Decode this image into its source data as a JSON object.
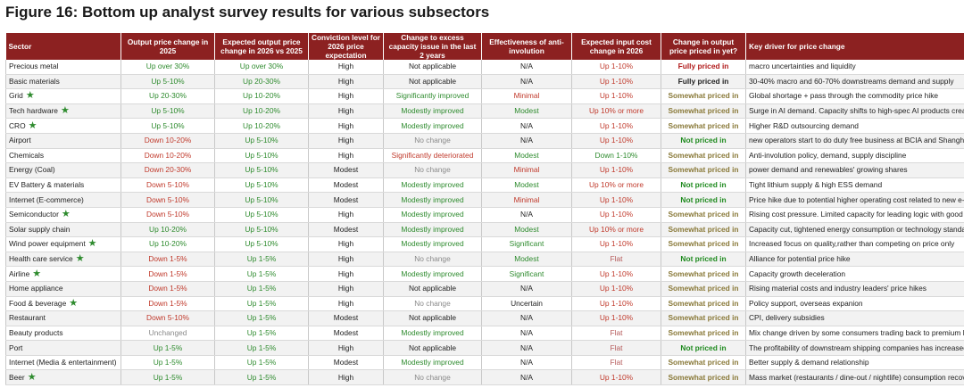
{
  "title": "Figure 16: Bottom up analyst survey results for various subsectors",
  "headers": [
    "Sector",
    "Output price change in 2025",
    "Expected output price change in 2026 vs 2025",
    "Conviction level for 2026 price expectation",
    "Change to excess capacity issue in the last 2 years",
    "Effectiveness of anti-involution",
    "Expected input cost change in 2026",
    "Change in output price priced in yet?",
    "Key driver for price change"
  ],
  "rows": [
    {
      "sector": "Precious metal",
      "star": false,
      "c1": [
        "Up over 30%",
        "green"
      ],
      "c2": [
        "Up over 30%",
        "green"
      ],
      "c3": [
        "High",
        "black"
      ],
      "c4": [
        "Not applicable",
        "black"
      ],
      "c5": [
        "N/A",
        "black"
      ],
      "c6": [
        "Up 1-10%",
        "red"
      ],
      "c7": [
        "Fully priced in",
        "darkred"
      ],
      "c8": "macro uncertainties and liquidity"
    },
    {
      "sector": "Basic materials",
      "star": false,
      "c1": [
        "Up 5-10%",
        "green"
      ],
      "c2": [
        "Up 20-30%",
        "green"
      ],
      "c3": [
        "High",
        "black"
      ],
      "c4": [
        "Not applicable",
        "black"
      ],
      "c5": [
        "N/A",
        "black"
      ],
      "c6": [
        "Up 1-10%",
        "red"
      ],
      "c7": [
        "Fully priced in",
        "dark"
      ],
      "c8": "30-40% macro and 60-70% downstreams demand and supply"
    },
    {
      "sector": "Grid",
      "star": true,
      "c1": [
        "Up 20-30%",
        "green"
      ],
      "c2": [
        "Up 10-20%",
        "green"
      ],
      "c3": [
        "High",
        "black"
      ],
      "c4": [
        "Significantly improved",
        "green"
      ],
      "c5": [
        "Minimal",
        "red"
      ],
      "c6": [
        "Up 1-10%",
        "red"
      ],
      "c7": [
        "Somewhat priced in",
        "olive"
      ],
      "c8": "Global shortage + pass through the commodity price hike"
    },
    {
      "sector": "Tech hardware",
      "star": true,
      "c1": [
        "Up 5-10%",
        "green"
      ],
      "c2": [
        "Up 10-20%",
        "green"
      ],
      "c3": [
        "High",
        "black"
      ],
      "c4": [
        "Modestly improved",
        "green"
      ],
      "c5": [
        "Modest",
        "green"
      ],
      "c6": [
        "Up 10% or more",
        "red"
      ],
      "c7": [
        "Somewhat priced in",
        "olive"
      ],
      "c8": "Surge in AI demand. Capacity shifts to high-spec AI products creating t"
    },
    {
      "sector": "CRO",
      "star": true,
      "c1": [
        "Up 5-10%",
        "green"
      ],
      "c2": [
        "Up 10-20%",
        "green"
      ],
      "c3": [
        "High",
        "black"
      ],
      "c4": [
        "Modestly improved",
        "green"
      ],
      "c5": [
        "N/A",
        "black"
      ],
      "c6": [
        "Up 1-10%",
        "red"
      ],
      "c7": [
        "Somewhat priced in",
        "olive"
      ],
      "c8": "Higher R&D outsourcing demand"
    },
    {
      "sector": "Airport",
      "star": false,
      "c1": [
        "Down 10-20%",
        "red"
      ],
      "c2": [
        "Up 5-10%",
        "green"
      ],
      "c3": [
        "High",
        "black"
      ],
      "c4": [
        "No change",
        "gray"
      ],
      "c5": [
        "N/A",
        "black"
      ],
      "c6": [
        "Up 1-10%",
        "red"
      ],
      "c7": [
        "Not priced in",
        "ngreen"
      ],
      "c8": "new operators start to do duty free business at BCIA and Shanghai airp"
    },
    {
      "sector": "Chemicals",
      "star": false,
      "c1": [
        "Down 10-20%",
        "red"
      ],
      "c2": [
        "Up 5-10%",
        "green"
      ],
      "c3": [
        "High",
        "black"
      ],
      "c4": [
        "Significantly deteriorated",
        "red"
      ],
      "c5": [
        "Modest",
        "green"
      ],
      "c6": [
        "Down 1-10%",
        "green"
      ],
      "c7": [
        "Somewhat priced in",
        "olive"
      ],
      "c8": "Anti-involution policy, demand, supply discipline"
    },
    {
      "sector": "Energy (Coal)",
      "star": false,
      "c1": [
        "Down 20-30%",
        "red"
      ],
      "c2": [
        "Up 5-10%",
        "green"
      ],
      "c3": [
        "Modest",
        "black"
      ],
      "c4": [
        "No change",
        "gray"
      ],
      "c5": [
        "Minimal",
        "red"
      ],
      "c6": [
        "Up 1-10%",
        "red"
      ],
      "c7": [
        "Somewhat priced in",
        "olive"
      ],
      "c8": "power demand and renewables' growing shares"
    },
    {
      "sector": "EV Battery & materials",
      "star": false,
      "c1": [
        "Down 5-10%",
        "red"
      ],
      "c2": [
        "Up 5-10%",
        "green"
      ],
      "c3": [
        "Modest",
        "black"
      ],
      "c4": [
        "Modestly improved",
        "green"
      ],
      "c5": [
        "Modest",
        "green"
      ],
      "c6": [
        "Up 10% or more",
        "red"
      ],
      "c7": [
        "Not priced in",
        "ngreen"
      ],
      "c8": "Tight lithium supply & high ESS demand"
    },
    {
      "sector": "Internet (E-commerce)",
      "star": false,
      "c1": [
        "Down 5-10%",
        "red"
      ],
      "c2": [
        "Up 5-10%",
        "green"
      ],
      "c3": [
        "Modest",
        "black"
      ],
      "c4": [
        "Modestly improved",
        "green"
      ],
      "c5": [
        "Minimal",
        "red"
      ],
      "c6": [
        "Up 1-10%",
        "red"
      ],
      "c7": [
        "Not priced in",
        "ngreen"
      ],
      "c8": "Price hike due to potential higher operating cost related to new e-com"
    },
    {
      "sector": "Semiconductor",
      "star": true,
      "c1": [
        "Down 5-10%",
        "red"
      ],
      "c2": [
        "Up 5-10%",
        "green"
      ],
      "c3": [
        "High",
        "black"
      ],
      "c4": [
        "Modestly improved",
        "green"
      ],
      "c5": [
        "N/A",
        "black"
      ],
      "c6": [
        "Up 1-10%",
        "red"
      ],
      "c7": [
        "Somewhat priced in",
        "olive"
      ],
      "c8": "Rising cost pressure. Limited capacity for leading logic with good dema"
    },
    {
      "sector": "Solar supply chain",
      "star": false,
      "c1": [
        "Up 10-20%",
        "green"
      ],
      "c2": [
        "Up 5-10%",
        "green"
      ],
      "c3": [
        "Modest",
        "black"
      ],
      "c4": [
        "Modestly improved",
        "green"
      ],
      "c5": [
        "Modest",
        "green"
      ],
      "c6": [
        "Up 10% or more",
        "red"
      ],
      "c7": [
        "Somewhat priced in",
        "olive"
      ],
      "c8": "Capacity cut, tightened energy consumption or technology standard"
    },
    {
      "sector": "Wind power equipment",
      "star": true,
      "c1": [
        "Up 10-20%",
        "green"
      ],
      "c2": [
        "Up 5-10%",
        "green"
      ],
      "c3": [
        "High",
        "black"
      ],
      "c4": [
        "Modestly improved",
        "green"
      ],
      "c5": [
        "Significant",
        "green"
      ],
      "c6": [
        "Up 1-10%",
        "red"
      ],
      "c7": [
        "Somewhat priced in",
        "olive"
      ],
      "c8": "Increased focus on quality,rather than competing on price only"
    },
    {
      "sector": "Health care service",
      "star": true,
      "c1": [
        "Down 1-5%",
        "red"
      ],
      "c2": [
        "Up 1-5%",
        "green"
      ],
      "c3": [
        "High",
        "black"
      ],
      "c4": [
        "No change",
        "gray"
      ],
      "c5": [
        "Modest",
        "green"
      ],
      "c6": [
        "Flat",
        "rose"
      ],
      "c7": [
        "Not priced in",
        "ngreen"
      ],
      "c8": "Alliance for potential price hike"
    },
    {
      "sector": "Airline",
      "star": true,
      "c1": [
        "Down 1-5%",
        "red"
      ],
      "c2": [
        "Up 1-5%",
        "green"
      ],
      "c3": [
        "High",
        "black"
      ],
      "c4": [
        "Modestly improved",
        "green"
      ],
      "c5": [
        "Significant",
        "green"
      ],
      "c6": [
        "Up 1-10%",
        "red"
      ],
      "c7": [
        "Somewhat priced in",
        "olive"
      ],
      "c8": "Capacity growth deceleration"
    },
    {
      "sector": "Home appliance",
      "star": false,
      "c1": [
        "Down 1-5%",
        "red"
      ],
      "c2": [
        "Up 1-5%",
        "green"
      ],
      "c3": [
        "High",
        "black"
      ],
      "c4": [
        "Not applicable",
        "black"
      ],
      "c5": [
        "N/A",
        "black"
      ],
      "c6": [
        "Up 1-10%",
        "red"
      ],
      "c7": [
        "Somewhat priced in",
        "olive"
      ],
      "c8": "Rising material costs and industry leaders' price hikes"
    },
    {
      "sector": "Food & beverage",
      "star": true,
      "c1": [
        "Down 1-5%",
        "red"
      ],
      "c2": [
        "Up 1-5%",
        "green"
      ],
      "c3": [
        "High",
        "black"
      ],
      "c4": [
        "No change",
        "gray"
      ],
      "c5": [
        "Uncertain",
        "black"
      ],
      "c6": [
        "Up 1-10%",
        "red"
      ],
      "c7": [
        "Somewhat priced in",
        "olive"
      ],
      "c8": "Policy support, overseas expanion"
    },
    {
      "sector": "Restaurant",
      "star": false,
      "c1": [
        "Down 5-10%",
        "red"
      ],
      "c2": [
        "Up 1-5%",
        "green"
      ],
      "c3": [
        "Modest",
        "black"
      ],
      "c4": [
        "Not applicable",
        "black"
      ],
      "c5": [
        "N/A",
        "black"
      ],
      "c6": [
        "Up 1-10%",
        "red"
      ],
      "c7": [
        "Somewhat priced in",
        "olive"
      ],
      "c8": "CPI, delivery subsidies"
    },
    {
      "sector": "Beauty products",
      "star": false,
      "c1": [
        "Unchanged",
        "gray"
      ],
      "c2": [
        "Up 1-5%",
        "green"
      ],
      "c3": [
        "Modest",
        "black"
      ],
      "c4": [
        "Modestly improved",
        "green"
      ],
      "c5": [
        "N/A",
        "black"
      ],
      "c6": [
        "Flat",
        "rose"
      ],
      "c7": [
        "Somewhat priced in",
        "olive"
      ],
      "c8": "Mix change driven by some consumers trading back to premium brand"
    },
    {
      "sector": "Port",
      "star": false,
      "c1": [
        "Up 1-5%",
        "green"
      ],
      "c2": [
        "Up 1-5%",
        "green"
      ],
      "c3": [
        "High",
        "black"
      ],
      "c4": [
        "Not applicable",
        "black"
      ],
      "c5": [
        "N/A",
        "black"
      ],
      "c6": [
        "Flat",
        "rose"
      ],
      "c7": [
        "Not priced in",
        "ngreen"
      ],
      "c8": "The profitability of downstream shipping companies has increased"
    },
    {
      "sector": "Internet (Media & entertainment)",
      "star": false,
      "c1": [
        "Up 1-5%",
        "green"
      ],
      "c2": [
        "Up 1-5%",
        "green"
      ],
      "c3": [
        "Modest",
        "black"
      ],
      "c4": [
        "Modestly improved",
        "green"
      ],
      "c5": [
        "N/A",
        "black"
      ],
      "c6": [
        "Flat",
        "rose"
      ],
      "c7": [
        "Somewhat priced in",
        "olive"
      ],
      "c8": "Better supply & demand relationship"
    },
    {
      "sector": "Beer",
      "star": true,
      "c1": [
        "Up 1-5%",
        "green"
      ],
      "c2": [
        "Up 1-5%",
        "green"
      ],
      "c3": [
        "High",
        "black"
      ],
      "c4": [
        "No change",
        "gray"
      ],
      "c5": [
        "N/A",
        "black"
      ],
      "c6": [
        "Up 1-10%",
        "red"
      ],
      "c7": [
        "Somewhat priced in",
        "olive"
      ],
      "c8": "Mass market (restaurants / dine-out / nightlife) consumption recovery, p"
    }
  ]
}
